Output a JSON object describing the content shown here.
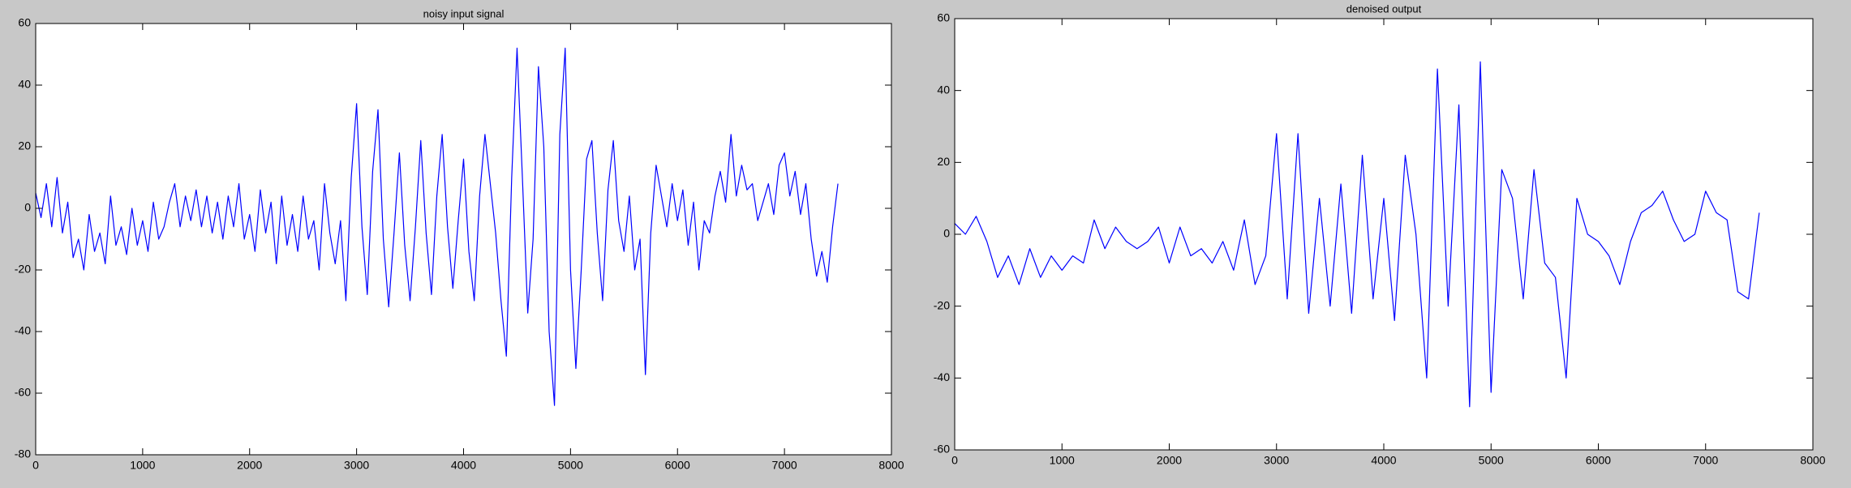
{
  "chart_data": [
    {
      "type": "line",
      "title": "noisy input signal",
      "color": "#0000ff",
      "xlim": [
        0,
        8000
      ],
      "xticks": [
        0,
        1000,
        2000,
        3000,
        4000,
        5000,
        6000,
        7000,
        8000
      ],
      "ylim": [
        -80,
        60
      ],
      "yticks": [
        -80,
        -60,
        -40,
        -20,
        0,
        20,
        40,
        60
      ],
      "x": [
        0,
        50,
        100,
        150,
        200,
        250,
        300,
        350,
        400,
        450,
        500,
        550,
        600,
        650,
        700,
        750,
        800,
        850,
        900,
        950,
        1000,
        1050,
        1100,
        1150,
        1200,
        1250,
        1300,
        1350,
        1400,
        1450,
        1500,
        1550,
        1600,
        1650,
        1700,
        1750,
        1800,
        1850,
        1900,
        1950,
        2000,
        2050,
        2100,
        2150,
        2200,
        2250,
        2300,
        2350,
        2400,
        2450,
        2500,
        2550,
        2600,
        2650,
        2700,
        2750,
        2800,
        2850,
        2900,
        2950,
        3000,
        3050,
        3100,
        3150,
        3200,
        3250,
        3300,
        3350,
        3400,
        3450,
        3500,
        3550,
        3600,
        3650,
        3700,
        3750,
        3800,
        3850,
        3900,
        3950,
        4000,
        4050,
        4100,
        4150,
        4200,
        4250,
        4300,
        4350,
        4400,
        4450,
        4500,
        4550,
        4600,
        4650,
        4700,
        4750,
        4800,
        4850,
        4900,
        4950,
        5000,
        5050,
        5100,
        5150,
        5200,
        5250,
        5300,
        5350,
        5400,
        5450,
        5500,
        5550,
        5600,
        5650,
        5700,
        5750,
        5800,
        5850,
        5900,
        5950,
        6000,
        6050,
        6100,
        6150,
        6200,
        6250,
        6300,
        6350,
        6400,
        6450,
        6500,
        6550,
        6600,
        6650,
        6700,
        6750,
        6800,
        6850,
        6900,
        6950,
        7000,
        7050,
        7100,
        7150,
        7200,
        7250,
        7300,
        7350,
        7400,
        7450,
        7500
      ],
      "values": [
        5,
        -3,
        8,
        -6,
        10,
        -8,
        2,
        -16,
        -10,
        -20,
        -2,
        -14,
        -8,
        -18,
        4,
        -12,
        -6,
        -15,
        0,
        -12,
        -4,
        -14,
        2,
        -10,
        -6,
        2,
        8,
        -6,
        4,
        -4,
        6,
        -6,
        4,
        -8,
        2,
        -10,
        4,
        -6,
        8,
        -10,
        -2,
        -14,
        6,
        -8,
        2,
        -18,
        4,
        -12,
        -2,
        -14,
        4,
        -10,
        -4,
        -20,
        8,
        -8,
        -18,
        -4,
        -30,
        10,
        34,
        -6,
        -28,
        12,
        32,
        -10,
        -32,
        -8,
        18,
        -12,
        -30,
        -6,
        22,
        -8,
        -28,
        4,
        24,
        -6,
        -26,
        -4,
        16,
        -14,
        -30,
        4,
        24,
        8,
        -8,
        -30,
        -48,
        10,
        52,
        10,
        -34,
        -10,
        46,
        20,
        -40,
        -64,
        24,
        52,
        -20,
        -52,
        -20,
        16,
        22,
        -8,
        -30,
        6,
        22,
        -4,
        -14,
        4,
        -20,
        -10,
        -54,
        -8,
        14,
        4,
        -6,
        8,
        -4,
        6,
        -12,
        2,
        -20,
        -4,
        -8,
        4,
        12,
        2,
        24,
        4,
        14,
        6,
        8,
        -4,
        2,
        8,
        -2,
        14,
        18,
        4,
        12,
        -2,
        8,
        -10,
        -22,
        -14,
        -24,
        -6,
        8
      ]
    },
    {
      "type": "line",
      "title": "denoised output",
      "color": "#0000ff",
      "xlim": [
        0,
        8000
      ],
      "xticks": [
        0,
        1000,
        2000,
        3000,
        4000,
        5000,
        6000,
        7000,
        8000
      ],
      "ylim": [
        -60,
        60
      ],
      "yticks": [
        -60,
        -40,
        -20,
        0,
        20,
        40,
        60
      ],
      "x": [
        0,
        100,
        200,
        300,
        400,
        500,
        600,
        700,
        800,
        900,
        1000,
        1100,
        1200,
        1300,
        1400,
        1500,
        1600,
        1700,
        1800,
        1900,
        2000,
        2100,
        2200,
        2300,
        2400,
        2500,
        2600,
        2700,
        2800,
        2900,
        3000,
        3100,
        3200,
        3300,
        3400,
        3500,
        3600,
        3700,
        3800,
        3900,
        4000,
        4100,
        4200,
        4300,
        4400,
        4500,
        4600,
        4700,
        4800,
        4900,
        5000,
        5100,
        5200,
        5300,
        5400,
        5500,
        5600,
        5700,
        5800,
        5900,
        6000,
        6100,
        6200,
        6300,
        6400,
        6500,
        6600,
        6700,
        6800,
        6900,
        7000,
        7100,
        7200,
        7300,
        7400,
        7500
      ],
      "values": [
        3,
        0,
        5,
        -2,
        -12,
        -6,
        -14,
        -4,
        -12,
        -6,
        -10,
        -6,
        -8,
        4,
        -4,
        2,
        -2,
        -4,
        -2,
        2,
        -8,
        2,
        -6,
        -4,
        -8,
        -2,
        -10,
        4,
        -14,
        -6,
        28,
        -18,
        28,
        -22,
        10,
        -20,
        14,
        -22,
        22,
        -18,
        10,
        -24,
        22,
        0,
        -40,
        46,
        -20,
        36,
        -48,
        48,
        -44,
        18,
        10,
        -18,
        18,
        -8,
        -12,
        -40,
        10,
        0,
        -2,
        -6,
        -14,
        -2,
        6,
        8,
        12,
        4,
        -2,
        0,
        12,
        6,
        4,
        -16,
        -18,
        6
      ]
    }
  ]
}
